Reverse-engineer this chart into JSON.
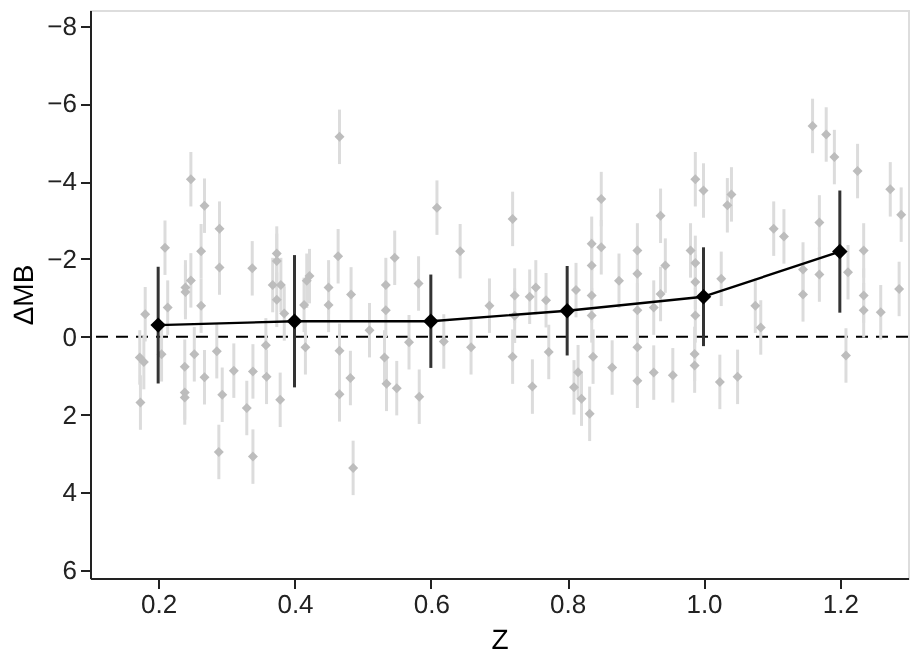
{
  "chart_data": {
    "type": "scatter",
    "xlabel": "Z",
    "ylabel": "ΔMB",
    "xlim": [
      0.1,
      1.3
    ],
    "ylim": [
      6.2,
      -8.4
    ],
    "xticks": [
      {
        "value": 0.2,
        "label": "0.2"
      },
      {
        "value": 0.4,
        "label": "0.4"
      },
      {
        "value": 0.6,
        "label": "0.6"
      },
      {
        "value": 0.8,
        "label": "0.8"
      },
      {
        "value": 1.0,
        "label": "1.0"
      },
      {
        "value": 1.2,
        "label": "1.2"
      }
    ],
    "yticks": [
      -8,
      -6,
      -4,
      -2,
      0,
      2,
      4,
      6
    ],
    "grid": false,
    "legend": false,
    "ref_lines": [
      {
        "axis": "y",
        "value": 0,
        "color": "#000000",
        "line_style": "dashed"
      }
    ],
    "series": [
      {
        "type": "scatter",
        "color": "#bdbdbd",
        "marker": "diamond",
        "x": [
          0.181,
          0.21,
          0.214,
          0.24,
          0.24,
          0.248,
          0.248,
          0.263,
          0.263,
          0.268,
          0.29,
          0.29,
          0.338,
          0.368,
          0.374,
          0.374,
          0.374,
          0.38,
          0.385,
          0.418,
          0.422,
          0.414,
          0.45,
          0.45,
          0.464,
          0.466,
          0.483,
          0.51,
          0.534,
          0.534,
          0.547,
          0.582,
          0.609,
          0.643,
          0.173,
          0.179,
          0.174,
          0.205,
          0.239,
          0.239,
          0.239,
          0.253,
          0.268,
          0.286,
          0.289,
          0.294,
          0.311,
          0.33,
          0.339,
          0.339,
          0.358,
          0.359,
          0.379,
          0.416,
          0.466,
          0.466,
          0.482,
          0.486,
          0.532,
          0.535,
          0.55,
          0.568,
          0.583,
          0.619,
          0.686,
          0.72,
          0.723,
          0.723,
          0.745,
          0.754,
          0.769,
          0.813,
          0.836,
          0.836,
          0.836,
          0.836,
          0.85,
          0.85,
          0.876,
          0.903,
          0.903,
          0.903,
          0.927,
          0.937,
          0.944,
          0.937,
          0.981,
          0.988,
          1.0,
          0.988,
          0.988,
          0.988,
          1.026,
          1.035,
          1.041,
          1.076,
          1.103,
          1.118,
          1.146,
          1.146,
          1.16,
          1.17,
          1.17,
          1.18,
          1.192,
          1.212,
          1.226,
          1.235,
          1.235,
          1.235,
          1.26,
          1.274,
          1.29,
          1.287,
          0.659,
          0.72,
          0.749,
          0.773,
          0.81,
          0.816,
          0.821,
          0.833,
          0.838,
          0.866,
          0.903,
          0.903,
          0.927,
          0.955,
          0.987,
          0.987,
          1.024,
          1.05,
          1.084,
          1.209
        ],
        "values": [
          -0.58,
          -2.29,
          -0.75,
          -1.27,
          -1.15,
          -4.05,
          -1.45,
          -2.2,
          -0.8,
          -3.37,
          -2.78,
          -1.78,
          -1.76,
          -1.33,
          -2.14,
          -1.95,
          -0.95,
          -1.33,
          -0.6,
          -1.44,
          -1.56,
          -0.82,
          -1.27,
          -0.82,
          -2.07,
          -5.14,
          -1.09,
          -0.17,
          -1.33,
          -0.68,
          -2.03,
          -1.37,
          -3.32,
          -2.2,
          0.53,
          0.65,
          1.69,
          0.45,
          0.77,
          1.43,
          1.56,
          0.45,
          1.04,
          0.37,
          2.96,
          1.49,
          0.87,
          1.83,
          0.89,
          3.08,
          0.22,
          1.03,
          1.62,
          0.27,
          0.36,
          1.48,
          1.06,
          3.37,
          0.53,
          1.21,
          1.32,
          0.14,
          1.54,
          0.12,
          -0.8,
          -3.03,
          -1.06,
          -0.54,
          -1.03,
          -1.27,
          -0.94,
          -1.2,
          -2.39,
          -1.83,
          -1.06,
          -0.55,
          -3.54,
          -2.3,
          -1.44,
          -2.22,
          -1.62,
          -0.68,
          -0.75,
          -3.11,
          -1.83,
          -1.1,
          -2.22,
          -4.05,
          -3.76,
          -1.9,
          -1.41,
          -0.55,
          -1.49,
          -3.38,
          -3.66,
          -0.8,
          -2.78,
          -2.58,
          -1.09,
          -1.73,
          -5.42,
          -2.94,
          -1.6,
          -5.2,
          -4.62,
          -1.66,
          -4.26,
          -2.22,
          -1.06,
          -0.68,
          -0.63,
          -3.79,
          -3.14,
          -1.23,
          0.27,
          0.51,
          1.28,
          0.39,
          1.3,
          0.91,
          1.59,
          1.98,
          0.51,
          0.79,
          1.13,
          0.27,
          0.92,
          0.99,
          0.74,
          0.44,
          1.16,
          1.03,
          -0.24,
          0.48
        ],
        "errors": [
          0.7,
          0.7,
          0.7,
          0.7,
          0.7,
          0.7,
          0.7,
          0.7,
          0.7,
          0.7,
          0.7,
          0.7,
          0.7,
          0.7,
          0.7,
          0.7,
          0.7,
          0.7,
          0.7,
          0.7,
          0.7,
          0.7,
          0.7,
          0.7,
          0.7,
          0.7,
          0.7,
          0.7,
          0.7,
          0.7,
          0.7,
          0.7,
          0.7,
          0.7,
          0.7,
          0.7,
          0.7,
          0.7,
          0.7,
          0.7,
          0.7,
          0.7,
          0.7,
          0.7,
          0.7,
          0.7,
          0.7,
          0.7,
          0.7,
          0.7,
          0.7,
          0.7,
          0.7,
          0.7,
          0.7,
          0.7,
          0.7,
          0.7,
          0.7,
          0.7,
          0.7,
          0.7,
          0.7,
          0.7,
          0.7,
          0.7,
          0.7,
          0.7,
          0.7,
          0.7,
          0.7,
          0.7,
          0.7,
          0.7,
          0.7,
          0.7,
          0.7,
          0.7,
          0.7,
          0.7,
          0.7,
          0.7,
          0.7,
          0.7,
          0.7,
          0.7,
          0.7,
          0.7,
          0.7,
          0.7,
          0.7,
          0.7,
          0.7,
          0.7,
          0.7,
          0.7,
          0.7,
          0.7,
          0.7,
          0.7,
          0.7,
          0.7,
          0.7,
          0.7,
          0.7,
          0.7,
          0.7,
          0.7,
          0.7,
          0.7,
          0.7,
          0.7,
          0.7,
          0.7,
          0.7,
          0.7,
          0.7,
          0.7,
          0.7,
          0.7,
          0.7,
          0.7,
          0.7,
          0.7,
          0.7,
          0.7,
          0.7,
          0.7,
          0.7,
          0.7,
          0.7,
          0.7,
          0.7,
          0.7
        ]
      },
      {
        "type": "line",
        "color": "#000000",
        "marker": "diamond",
        "line_style": "solid",
        "x": [
          0.2,
          0.4,
          0.6,
          0.8,
          1.0,
          1.2
        ],
        "values": [
          -0.3,
          -0.4,
          -0.4,
          -0.67,
          -1.03,
          -2.19
        ],
        "errors": [
          1.5,
          1.7,
          1.2,
          1.15,
          1.27,
          1.57
        ]
      }
    ]
  }
}
